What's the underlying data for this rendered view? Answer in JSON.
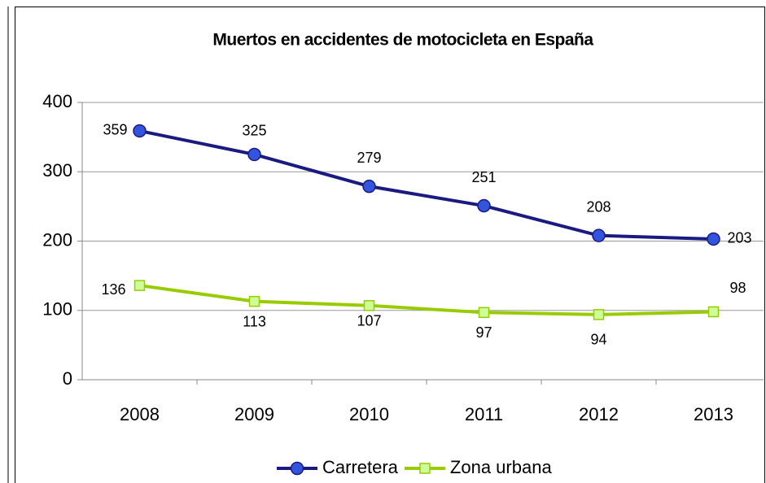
{
  "chart_data": {
    "type": "line",
    "title": "Muertos en accidentes de motocicleta en España",
    "categories": [
      "2008",
      "2009",
      "2010",
      "2011",
      "2012",
      "2013"
    ],
    "series": [
      {
        "name": "Carretera",
        "color": "#1a1a80",
        "marker": "circle",
        "marker_color": "#3355dd",
        "values": [
          359,
          325,
          279,
          251,
          208,
          203
        ]
      },
      {
        "name": "Zona urbana",
        "color": "#99cc00",
        "marker": "square",
        "marker_color": "#ccff99",
        "values": [
          136,
          113,
          107,
          97,
          94,
          98
        ]
      }
    ],
    "ylim": [
      0,
      400
    ],
    "yticks": [
      0,
      100,
      200,
      300,
      400
    ],
    "grid": true,
    "legend": "bottom"
  }
}
